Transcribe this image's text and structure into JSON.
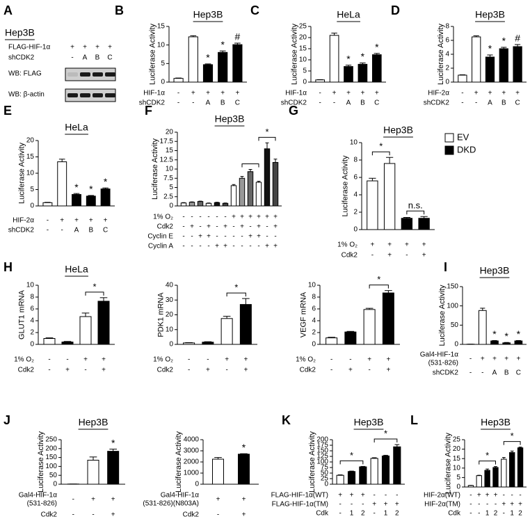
{
  "blot": {
    "panel": "A",
    "cell": "Hep3B",
    "rows": [
      {
        "label": "FLAG-HIF-1α",
        "marks": [
          "+",
          "+",
          "+",
          "+"
        ]
      },
      {
        "label": "shCDK2",
        "marks": [
          "-",
          "A",
          "B",
          "C"
        ]
      }
    ],
    "blots": [
      "WB: FLAG",
      "WB: β-actin"
    ]
  },
  "chart_data": [
    {
      "type": "bar",
      "panel": "B",
      "title": "Hep3B",
      "ylabel": "Luciferase Activity",
      "ylim": [
        0,
        15
      ],
      "yticks": [
        0,
        5,
        10,
        15
      ],
      "values": [
        1,
        12.2,
        4.7,
        8,
        10.1
      ],
      "errors": [
        0.1,
        0.3,
        0.2,
        0.4,
        0.4
      ],
      "colors": [
        "#ffffff",
        "#ffffff",
        "#000000",
        "#000000",
        "#000000"
      ],
      "markers": [
        null,
        null,
        "*",
        "*",
        "#"
      ],
      "rows": [
        {
          "label": "HIF-1α",
          "marks": [
            "-",
            "+",
            "+",
            "+",
            "+"
          ]
        },
        {
          "label": "shCDK2",
          "marks": [
            "-",
            "-",
            "A",
            "B",
            "C"
          ]
        }
      ]
    },
    {
      "type": "bar",
      "panel": "C",
      "title": "HeLa",
      "ylabel": "Luciferase Activity",
      "ylim": [
        0,
        25
      ],
      "yticks": [
        0,
        5,
        10,
        15,
        20,
        25
      ],
      "values": [
        1,
        21,
        7,
        8,
        12.3
      ],
      "errors": [
        0.1,
        1,
        0.6,
        0.6,
        0.6
      ],
      "colors": [
        "#ffffff",
        "#ffffff",
        "#000000",
        "#000000",
        "#000000"
      ],
      "markers": [
        null,
        null,
        "*",
        "*",
        "*"
      ],
      "rows": [
        {
          "label": "HIF-1α",
          "marks": [
            "-",
            "+",
            "+",
            "+",
            "+"
          ]
        },
        {
          "label": "shCDK2",
          "marks": [
            "-",
            "-",
            "A",
            "B",
            "C"
          ]
        }
      ]
    },
    {
      "type": "bar",
      "panel": "D",
      "title": "Hep3B",
      "ylabel": "Luciferase Activity",
      "ylim": [
        0,
        8
      ],
      "yticks": [
        0,
        2,
        4,
        6,
        8
      ],
      "values": [
        1,
        6.5,
        3.6,
        4.8,
        5.1
      ],
      "errors": [
        0.05,
        0.15,
        0.3,
        0.2,
        0.3
      ],
      "colors": [
        "#ffffff",
        "#ffffff",
        "#000000",
        "#000000",
        "#000000"
      ],
      "markers": [
        null,
        null,
        "*",
        "*",
        "#"
      ],
      "rows": [
        {
          "label": "HIF-2α",
          "marks": [
            "-",
            "+",
            "+",
            "+",
            "+"
          ]
        },
        {
          "label": "shCDK2",
          "marks": [
            "-",
            "-",
            "A",
            "B",
            "C"
          ]
        }
      ]
    },
    {
      "type": "bar",
      "panel": "E",
      "title": "HeLa",
      "ylabel": "Luciferase Activity",
      "ylim": [
        0,
        20
      ],
      "yticks": [
        0,
        5,
        10,
        15,
        20
      ],
      "values": [
        1,
        13.5,
        3.5,
        3,
        5.2
      ],
      "errors": [
        0.1,
        0.8,
        0.3,
        0.2,
        0.3
      ],
      "colors": [
        "#ffffff",
        "#ffffff",
        "#000000",
        "#000000",
        "#000000"
      ],
      "markers": [
        null,
        null,
        "*",
        "*",
        "*"
      ],
      "rows": [
        {
          "label": "HIF-2α",
          "marks": [
            "-",
            "+",
            "+",
            "+",
            "+"
          ]
        },
        {
          "label": "shCDK2",
          "marks": [
            "-",
            "-",
            "A",
            "B",
            "C"
          ]
        }
      ]
    },
    {
      "type": "bar",
      "panel": "F",
      "title": "Hep3B",
      "ylabel": "Luciferase Activity",
      "ylim": [
        0,
        20
      ],
      "yticks": [
        0,
        2.5,
        5,
        7.5,
        10,
        12.5,
        15,
        17.5,
        20
      ],
      "values": [
        0.8,
        1,
        1.2,
        0.7,
        0.9,
        0.7,
        5.5,
        7.5,
        9.3,
        6.4,
        15.5,
        11.8
      ],
      "errors": [
        0.1,
        0.1,
        0.1,
        0.1,
        0.1,
        0.1,
        0.3,
        0.5,
        0.6,
        0.3,
        1.6,
        0.9
      ],
      "colors": [
        "#ffffff",
        "#999999",
        "#666666",
        "#ffffff",
        "#111111",
        "#444444",
        "#ffffff",
        "#999999",
        "#666666",
        "#ffffff",
        "#111111",
        "#444444"
      ],
      "rows": [
        {
          "label": "1% O₂",
          "marks": [
            "-",
            "-",
            "-",
            "-",
            "-",
            "-",
            "+",
            "+",
            "+",
            "+",
            "+",
            "+"
          ]
        },
        {
          "label": "Cdk2",
          "marks": [
            "-",
            "+",
            "-",
            "+",
            "-",
            "+",
            "-",
            "+",
            "-",
            "+",
            "-",
            "+"
          ]
        },
        {
          "label": "Cyclin E",
          "marks": [
            "-",
            "-",
            "+",
            "+",
            "-",
            "-",
            "-",
            "-",
            "+",
            "+",
            "-",
            "-"
          ]
        },
        {
          "label": "Cyclin A",
          "marks": [
            "-",
            "-",
            "-",
            "-",
            "+",
            "+",
            "-",
            "-",
            "-",
            "-",
            "+",
            "+"
          ]
        }
      ],
      "brackets": [
        {
          "span": [
            7,
            9
          ]
        },
        {
          "span": [
            9,
            11
          ],
          "label": "*"
        }
      ]
    },
    {
      "type": "bar",
      "panel": "G",
      "title": "Hep3B",
      "ylabel": "Luciferase Activity",
      "ylim": [
        0,
        10
      ],
      "yticks": [
        0,
        2,
        4,
        6,
        8,
        10
      ],
      "values": [
        5.6,
        7.6,
        1.3,
        1.3
      ],
      "errors": [
        0.3,
        0.7,
        0.1,
        0.2
      ],
      "colors": [
        "#ffffff",
        "#ffffff",
        "#000000",
        "#000000"
      ],
      "legend": [
        {
          "name": "EV",
          "color": "#ffffff"
        },
        {
          "name": "DKD",
          "color": "#000000"
        }
      ],
      "rows": [
        {
          "label": "1% O₂",
          "marks": [
            "+",
            "+",
            "+",
            "+"
          ]
        },
        {
          "label": "Cdk2",
          "marks": [
            "-",
            "+",
            "-",
            "+"
          ]
        }
      ],
      "brackets": [
        {
          "span": [
            0,
            1
          ],
          "label": "*"
        },
        {
          "span": [
            2,
            3
          ],
          "label": "n.s."
        }
      ]
    },
    {
      "type": "bar",
      "panel": "H",
      "title": "HeLa",
      "ylabel": "GLUT1 mRNA",
      "ylim": [
        0,
        10
      ],
      "yticks": [
        0,
        2,
        4,
        6,
        8,
        10
      ],
      "values": [
        1,
        0.4,
        4.7,
        7.3
      ],
      "errors": [
        0.1,
        0.1,
        0.6,
        0.6
      ],
      "colors": [
        "#ffffff",
        "#000000",
        "#ffffff",
        "#000000"
      ],
      "rows": [
        {
          "label": "1% O₂",
          "marks": [
            "-",
            "-",
            "+",
            "+"
          ]
        },
        {
          "label": "Cdk2",
          "marks": [
            "-",
            "+",
            "-",
            "+"
          ]
        }
      ],
      "brackets": [
        {
          "span": [
            2,
            3
          ],
          "label": "*"
        }
      ]
    },
    {
      "type": "bar",
      "ylabel": "PDK1 mRNA",
      "ylim": [
        0,
        40
      ],
      "yticks": [
        0,
        10,
        20,
        30,
        40
      ],
      "values": [
        1,
        1.5,
        17.5,
        27
      ],
      "errors": [
        0.2,
        0.3,
        1.5,
        4
      ],
      "colors": [
        "#ffffff",
        "#000000",
        "#ffffff",
        "#000000"
      ],
      "rows": [
        {
          "label": "1% O₂",
          "marks": [
            "-",
            "-",
            "+",
            "+"
          ]
        },
        {
          "label": "Cdk2",
          "marks": [
            "-",
            "+",
            "-",
            "+"
          ]
        }
      ],
      "brackets": [
        {
          "span": [
            2,
            3
          ],
          "label": "*"
        }
      ]
    },
    {
      "type": "bar",
      "ylabel": "VEGF mRNA",
      "ylim": [
        0,
        10
      ],
      "yticks": [
        0,
        2,
        4,
        6,
        8,
        10
      ],
      "values": [
        1.1,
        2.1,
        5.9,
        8.7
      ],
      "errors": [
        0.1,
        0.1,
        0.2,
        0.4
      ],
      "colors": [
        "#ffffff",
        "#000000",
        "#ffffff",
        "#000000"
      ],
      "rows": [
        {
          "label": "1% O₂",
          "marks": [
            "-",
            "-",
            "+",
            "+"
          ]
        },
        {
          "label": "Cdk2",
          "marks": [
            "-",
            "+",
            "-",
            "+"
          ]
        }
      ],
      "brackets": [
        {
          "span": [
            2,
            3
          ],
          "label": "*"
        }
      ]
    },
    {
      "type": "bar",
      "panel": "I",
      "title": "Hep3B",
      "ylabel": "Luciferase Activity",
      "ylim": [
        0,
        150
      ],
      "yticks": [
        0,
        50,
        100,
        150
      ],
      "values": [
        0.5,
        88,
        9,
        4,
        9
      ],
      "errors": [
        0,
        6,
        1,
        1,
        1
      ],
      "colors": [
        "#ffffff",
        "#ffffff",
        "#000000",
        "#000000",
        "#000000"
      ],
      "markers": [
        null,
        null,
        "*",
        "*",
        "*"
      ],
      "rows": [
        {
          "label": [
            "Gal4-HIF-1α",
            "(531-826)"
          ],
          "marks": [
            "-",
            "+",
            "+",
            "+",
            "+"
          ]
        },
        {
          "label": "shCDK2",
          "marks": [
            "-",
            "-",
            "A",
            "B",
            "C"
          ]
        }
      ]
    },
    {
      "type": "bar",
      "panel": "J",
      "title": "Hep3B",
      "ylabel": "Luciferase Activity",
      "ylim": [
        0,
        250
      ],
      "yticks": [
        0,
        50,
        100,
        150,
        200,
        250
      ],
      "values": [
        1,
        135,
        185
      ],
      "errors": [
        0,
        18,
        12
      ],
      "colors": [
        "#ffffff",
        "#ffffff",
        "#000000"
      ],
      "markers": [
        null,
        null,
        "*"
      ],
      "rows": [
        {
          "label": [
            "Gal4-HIF-1α",
            "(531-826)"
          ],
          "marks": [
            "-",
            "+",
            "+"
          ]
        },
        {
          "label": "Cdk2",
          "marks": [
            "-",
            "-",
            "+"
          ]
        }
      ]
    },
    {
      "type": "bar",
      "ylabel": "Luciferase Activity",
      "ylim": [
        0,
        4000
      ],
      "yticks": [
        0,
        1000,
        2000,
        3000,
        4000
      ],
      "values": [
        2250,
        2700
      ],
      "errors": [
        150,
        40
      ],
      "colors": [
        "#ffffff",
        "#000000"
      ],
      "markers": [
        null,
        "*"
      ],
      "rows": [
        {
          "label": [
            "Gal4-HIF-1α",
            "(531-826)(N803A)"
          ],
          "marks": [
            "+",
            "+"
          ]
        },
        {
          "label": "Cdk2",
          "marks": [
            "-",
            "+"
          ]
        }
      ]
    },
    {
      "type": "bar",
      "panel": "K",
      "title": "Hep3B",
      "ylabel": "Luciferase Activity",
      "ylim": [
        0,
        200
      ],
      "yticks": [
        0,
        25,
        50,
        75,
        100,
        125,
        150,
        175,
        200
      ],
      "values": [
        40,
        57,
        78,
        116,
        127,
        168
      ],
      "errors": [
        2,
        2,
        2,
        3,
        3,
        10
      ],
      "colors": [
        "#ffffff",
        "#000000",
        "#000000",
        "#ffffff",
        "#000000",
        "#000000"
      ],
      "rows": [
        {
          "label": "FLAG-HIF-1α(WT)",
          "marks": [
            "+",
            "+",
            "+",
            "-",
            "-",
            "-"
          ]
        },
        {
          "label": "FLAG-HIF-1α(TM)",
          "marks": [
            "-",
            "-",
            "-",
            "+",
            "+",
            "+"
          ]
        },
        {
          "label": "Cdk",
          "marks": [
            "-",
            "1",
            "2",
            "-",
            "1",
            "2"
          ]
        }
      ],
      "brackets": [
        {
          "span": [
            0,
            2
          ],
          "label": "*"
        },
        {
          "span": [
            3,
            5
          ],
          "label": "*"
        }
      ]
    },
    {
      "type": "bar",
      "panel": "L",
      "title": "Hep3B",
      "ylabel": "Luciferase Activity",
      "ylim": [
        0,
        25
      ],
      "yticks": [
        0,
        5,
        10,
        15,
        20,
        25
      ],
      "values": [
        0.8,
        6,
        8.8,
        10.3,
        14.7,
        18.2,
        20.7
      ],
      "errors": [
        0.1,
        0.2,
        0.7,
        0.5,
        0.9,
        0.8,
        0.4
      ],
      "colors": [
        "#ffffff",
        "#ffffff",
        "#000000",
        "#000000",
        "#ffffff",
        "#000000",
        "#000000"
      ],
      "rows": [
        {
          "label": "HIF-2α(WT)",
          "marks": [
            "-",
            "+",
            "+",
            "+",
            "-",
            "-",
            "-"
          ]
        },
        {
          "label": "HIF-2α(TM)",
          "marks": [
            "-",
            "-",
            "-",
            "-",
            "+",
            "+",
            "+"
          ]
        },
        {
          "label": "Cdk",
          "marks": [
            "-",
            "-",
            "1",
            "2",
            "-",
            "1",
            "2"
          ]
        }
      ],
      "brackets": [
        {
          "span": [
            1,
            3
          ],
          "label": "*"
        },
        {
          "span": [
            4,
            6
          ],
          "label": "*"
        }
      ]
    }
  ]
}
